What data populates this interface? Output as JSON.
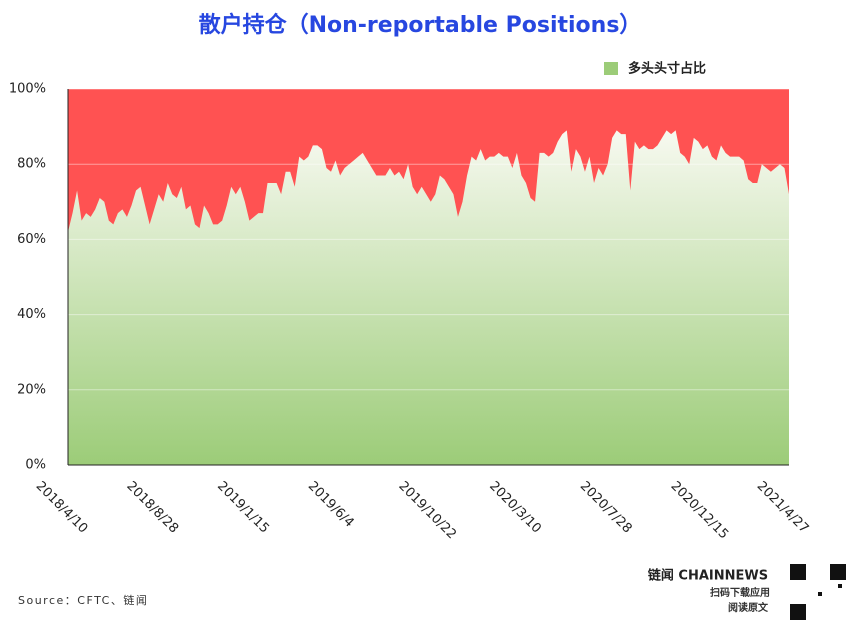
{
  "chart_data": {
    "type": "area",
    "title": "散户持仓（Non-reportable Positions）",
    "categories": [
      "2018/4/10",
      null,
      null,
      null,
      null,
      null,
      null,
      null,
      null,
      null,
      null,
      null,
      null,
      null,
      null,
      null,
      null,
      null,
      null,
      null,
      "2018/8/28",
      null,
      null,
      null,
      null,
      null,
      null,
      null,
      null,
      null,
      null,
      null,
      null,
      null,
      null,
      null,
      null,
      null,
      null,
      null,
      "2019/1/15",
      null,
      null,
      null,
      null,
      null,
      null,
      null,
      null,
      null,
      null,
      null,
      null,
      null,
      null,
      null,
      null,
      null,
      null,
      null,
      "2019/6/4",
      null,
      null,
      null,
      null,
      null,
      null,
      null,
      null,
      null,
      null,
      null,
      null,
      null,
      null,
      null,
      null,
      null,
      null,
      null,
      "2019/10/22",
      null,
      null,
      null,
      null,
      null,
      null,
      null,
      null,
      null,
      null,
      null,
      null,
      null,
      null,
      null,
      null,
      null,
      null,
      null,
      "2020/3/10",
      null,
      null,
      null,
      null,
      null,
      null,
      null,
      null,
      null,
      null,
      null,
      null,
      null,
      null,
      null,
      null,
      null,
      null,
      null,
      "2020/7/28",
      null,
      null,
      null,
      null,
      null,
      null,
      null,
      null,
      null,
      null,
      null,
      null,
      null,
      null,
      null,
      null,
      null,
      null,
      null,
      "2020/12/15",
      null,
      null,
      null,
      null,
      null,
      null,
      null,
      null,
      null,
      null,
      null,
      null,
      null,
      null,
      null,
      null,
      null,
      null,
      "2021/4/27"
    ],
    "series": [
      {
        "name": "多头头寸占比",
        "color": "#9ccc78",
        "values": [
          62,
          67,
          73,
          65,
          67,
          66,
          68,
          71,
          70,
          65,
          64,
          67,
          68,
          66,
          69,
          73,
          74,
          69,
          64,
          68,
          72,
          70,
          75,
          72,
          71,
          74,
          68,
          69,
          64,
          63,
          69,
          67,
          64,
          64,
          65,
          69,
          74,
          72,
          74,
          70,
          65,
          66,
          67,
          67,
          75,
          75,
          75,
          72,
          78,
          78,
          74,
          82,
          81,
          82,
          85,
          85,
          84,
          79,
          78,
          81,
          77,
          79,
          80,
          81,
          82,
          83,
          81,
          79,
          77,
          77,
          77,
          79,
          77,
          78,
          76,
          80,
          74,
          72,
          74,
          72,
          70,
          72,
          77,
          76,
          74,
          72,
          66,
          70,
          77,
          82,
          81,
          84,
          81,
          82,
          82,
          83,
          82,
          82,
          79,
          83,
          77,
          75,
          71,
          70,
          83,
          83,
          82,
          83,
          86,
          88,
          89,
          78,
          84,
          82,
          78,
          82,
          75,
          79,
          77,
          80,
          87,
          89,
          88,
          88,
          73,
          86,
          84,
          85,
          84,
          84,
          85,
          87,
          89,
          88,
          89,
          83,
          82,
          80,
          87,
          86,
          84,
          85,
          82,
          81,
          85,
          83,
          82,
          82,
          82,
          81,
          76,
          75,
          75,
          80,
          79,
          78,
          79,
          80,
          79,
          72
        ]
      }
    ],
    "remainder_color": "#ff5252",
    "ylim": [
      0,
      100
    ],
    "yticks": [
      {
        "value": 0,
        "label": "0%"
      },
      {
        "value": 20,
        "label": "20%"
      },
      {
        "value": 40,
        "label": "40%"
      },
      {
        "value": 60,
        "label": "60%"
      },
      {
        "value": 80,
        "label": "80%"
      },
      {
        "value": 100,
        "label": "100%"
      }
    ],
    "grid": true,
    "legend": "top-right",
    "source": "Source：CFTC、链闻",
    "brand": "链闻 CHAINNEWS",
    "brand_line1": "扫码下载应用",
    "brand_line2": "阅读原文"
  }
}
